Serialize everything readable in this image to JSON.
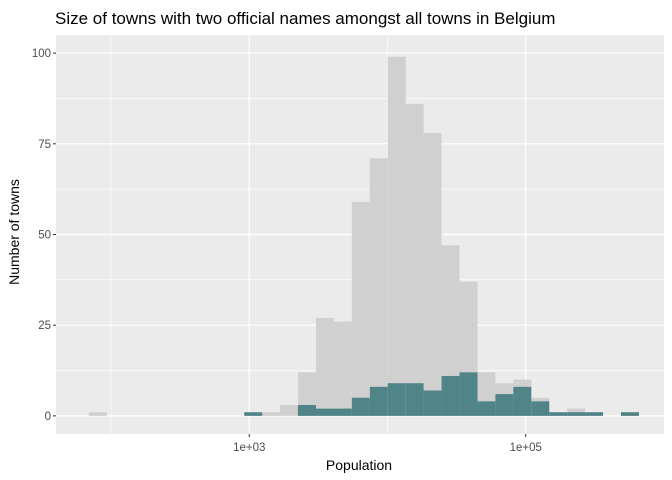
{
  "chart_data": {
    "type": "bar",
    "title": "Size of towns with two official names amongst all towns in Belgium",
    "xlabel": "Population",
    "ylabel": "Number of towns",
    "x_scale": "log10",
    "xlim": [
      40,
      1000000
    ],
    "ylim": [
      -5,
      105
    ],
    "x_ticks": [
      {
        "value": 1000,
        "label": "1e+03"
      },
      {
        "value": 100000,
        "label": "1e+05"
      }
    ],
    "x_minor_ticks": [
      100,
      10000
    ],
    "y_ticks": [
      {
        "value": 0,
        "label": "0"
      },
      {
        "value": 25,
        "label": "25"
      },
      {
        "value": 50,
        "label": "50"
      },
      {
        "value": 75,
        "label": "75"
      },
      {
        "value": 100,
        "label": "100"
      }
    ],
    "grid": true,
    "bin_width_log10": 0.13,
    "series": [
      {
        "color": "#d0d0d0",
        "bins": [
          {
            "x0": 69,
            "x1": 93,
            "count": 1
          },
          {
            "x0": 920,
            "x1": 1240,
            "count": 1
          },
          {
            "x0": 1240,
            "x1": 1670,
            "count": 1
          },
          {
            "x0": 1670,
            "x1": 2250,
            "count": 3
          },
          {
            "x0": 2250,
            "x1": 3040,
            "count": 12
          },
          {
            "x0": 3040,
            "x1": 4100,
            "count": 27
          },
          {
            "x0": 4100,
            "x1": 5520,
            "count": 26
          },
          {
            "x0": 5520,
            "x1": 7450,
            "count": 59
          },
          {
            "x0": 7450,
            "x1": 10040,
            "count": 71
          },
          {
            "x0": 10040,
            "x1": 13540,
            "count": 99
          },
          {
            "x0": 13540,
            "x1": 18250,
            "count": 86
          },
          {
            "x0": 18250,
            "x1": 24600,
            "count": 78
          },
          {
            "x0": 24600,
            "x1": 33200,
            "count": 47
          },
          {
            "x0": 33200,
            "x1": 44800,
            "count": 37
          },
          {
            "x0": 44800,
            "x1": 60300,
            "count": 12
          },
          {
            "x0": 60300,
            "x1": 81300,
            "count": 9
          },
          {
            "x0": 81300,
            "x1": 109700,
            "count": 10
          },
          {
            "x0": 109700,
            "x1": 147900,
            "count": 5
          },
          {
            "x0": 147900,
            "x1": 199400,
            "count": 1
          },
          {
            "x0": 199400,
            "x1": 268800,
            "count": 2
          },
          {
            "x0": 268800,
            "x1": 362400,
            "count": 1
          },
          {
            "x0": 488600,
            "x1": 658800,
            "count": 1
          }
        ]
      },
      {
        "color": "#508488",
        "bins": [
          {
            "x0": 920,
            "x1": 1240,
            "count": 1
          },
          {
            "x0": 2250,
            "x1": 3040,
            "count": 3
          },
          {
            "x0": 3040,
            "x1": 4100,
            "count": 2
          },
          {
            "x0": 4100,
            "x1": 5520,
            "count": 2
          },
          {
            "x0": 5520,
            "x1": 7450,
            "count": 5
          },
          {
            "x0": 7450,
            "x1": 10040,
            "count": 8
          },
          {
            "x0": 10040,
            "x1": 13540,
            "count": 9
          },
          {
            "x0": 13540,
            "x1": 18250,
            "count": 9
          },
          {
            "x0": 18250,
            "x1": 24600,
            "count": 7
          },
          {
            "x0": 24600,
            "x1": 33200,
            "count": 11
          },
          {
            "x0": 33200,
            "x1": 44800,
            "count": 12
          },
          {
            "x0": 44800,
            "x1": 60300,
            "count": 4
          },
          {
            "x0": 60300,
            "x1": 81300,
            "count": 6
          },
          {
            "x0": 81300,
            "x1": 109700,
            "count": 8
          },
          {
            "x0": 109700,
            "x1": 147900,
            "count": 4
          },
          {
            "x0": 147900,
            "x1": 199400,
            "count": 1
          },
          {
            "x0": 199400,
            "x1": 268800,
            "count": 1
          },
          {
            "x0": 268800,
            "x1": 362400,
            "count": 1
          },
          {
            "x0": 488600,
            "x1": 658800,
            "count": 1
          }
        ]
      }
    ],
    "panel_background": "#ebebeb",
    "grid_color": "#ffffff"
  }
}
